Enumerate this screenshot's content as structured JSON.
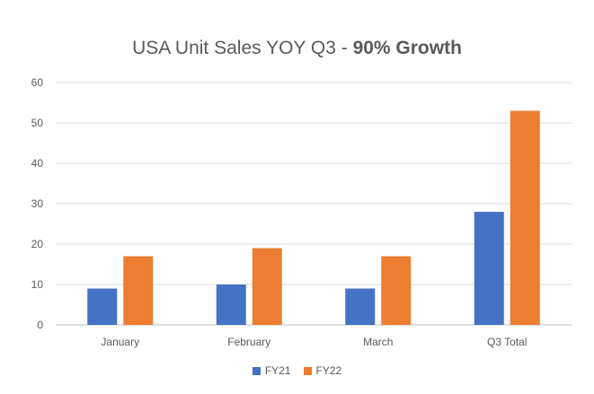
{
  "chart_data": {
    "type": "bar",
    "title_prefix": "USA Unit Sales YOY Q3 - ",
    "title_emphasis": "90% Growth",
    "categories": [
      "January",
      "February",
      "March",
      "Q3 Total"
    ],
    "series": [
      {
        "name": "FY21",
        "color": "#4472C4",
        "values": [
          9,
          10,
          9,
          28
        ]
      },
      {
        "name": "FY22",
        "color": "#ED7D31",
        "values": [
          17,
          19,
          17,
          53
        ]
      }
    ],
    "ylim": [
      0,
      60
    ],
    "yticks": [
      0,
      10,
      20,
      30,
      40,
      50,
      60
    ],
    "grid": true,
    "legend": "bottom"
  }
}
